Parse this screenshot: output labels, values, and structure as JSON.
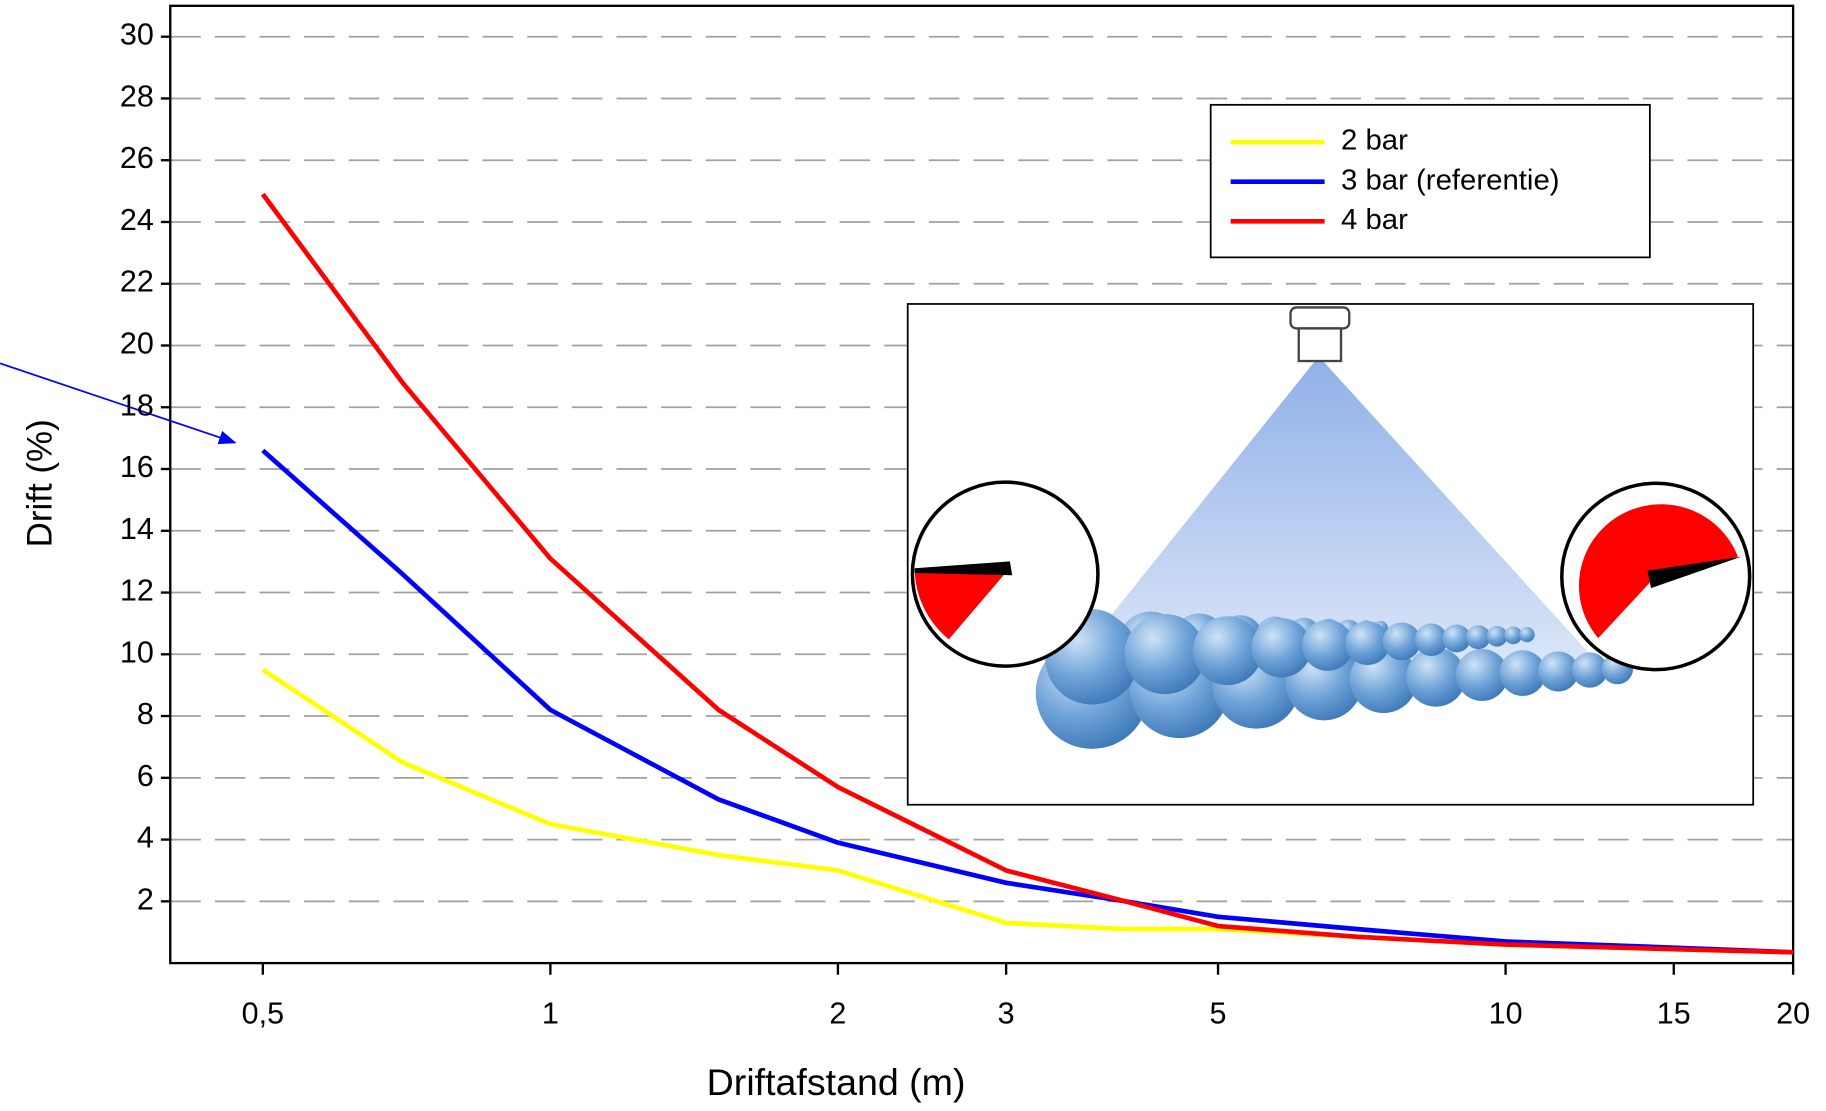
{
  "chart_data": {
    "type": "line",
    "x_label": "Driftafstand (m)",
    "y_label": "Drift (%)",
    "x": [
      0.5,
      0.7,
      1,
      1.5,
      2,
      3,
      4,
      5,
      7,
      10,
      15,
      20
    ],
    "series": [
      {
        "name": "2 bar",
        "color": "#ffff00",
        "values": [
          9.5,
          6.5,
          4.5,
          3.5,
          3.0,
          1.3,
          1.1,
          1.1,
          0.85,
          0.6,
          0.45,
          0.35
        ]
      },
      {
        "name": "3 bar (referentie)",
        "color": "#0000ff",
        "values": [
          16.6,
          12.6,
          8.2,
          5.3,
          3.9,
          2.6,
          2.0,
          1.5,
          1.1,
          0.7,
          0.5,
          0.35
        ]
      },
      {
        "name": "4 bar",
        "color": "#ff0000",
        "values": [
          24.9,
          18.8,
          13.1,
          8.2,
          5.7,
          3.0,
          2.0,
          1.2,
          0.85,
          0.6,
          0.45,
          0.35
        ]
      }
    ],
    "x_log": true,
    "xlim": [
      0.4,
      20
    ],
    "xticks": [
      {
        "value": 0.5,
        "label": "0,5"
      },
      1,
      2,
      3,
      5,
      10,
      15,
      20
    ],
    "ylim": [
      0,
      31
    ],
    "yticks": [
      2,
      4,
      6,
      8,
      10,
      12,
      14,
      16,
      18,
      20,
      22,
      24,
      26,
      28,
      30
    ],
    "grid": true,
    "legend": "upper right"
  }
}
